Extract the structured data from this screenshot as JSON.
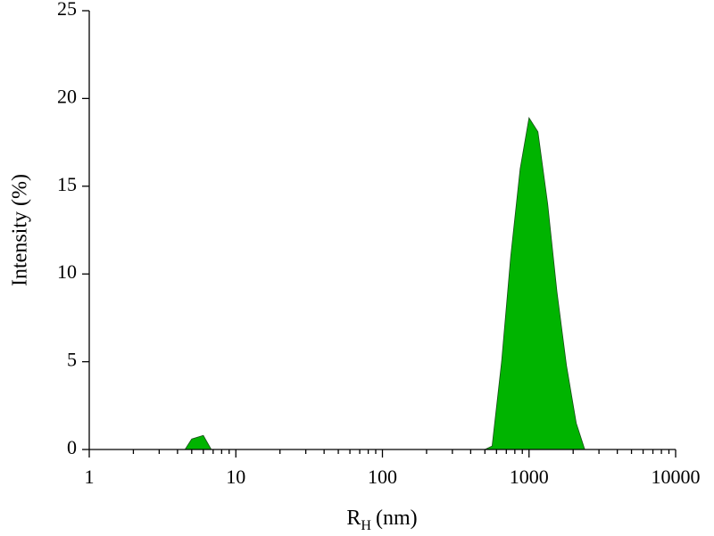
{
  "chart_data": {
    "type": "area",
    "xlabel": "R",
    "xlabel_sub": "H",
    "xlabel_unit": "(nm)",
    "ylabel": "Intensity (%)",
    "x": [
      4.5,
      5,
      6,
      6.8,
      null,
      500,
      560,
      650,
      750,
      870,
      1000,
      1150,
      1340,
      1550,
      1800,
      2100,
      2400
    ],
    "values": [
      0,
      0.6,
      0.8,
      0,
      null,
      0,
      0.2,
      5,
      11,
      16,
      18.9,
      18.1,
      14,
      9,
      4.8,
      1.5,
      0
    ],
    "color": "#00b400",
    "edge_color": "#1a4d1a",
    "xlog": true,
    "xlim": [
      1,
      10000
    ],
    "xticks": [
      1,
      10,
      100,
      1000,
      10000
    ],
    "minor_ticks": true,
    "ylim": [
      0,
      25
    ],
    "yticks": [
      0,
      5,
      10,
      15,
      20,
      25
    ]
  }
}
